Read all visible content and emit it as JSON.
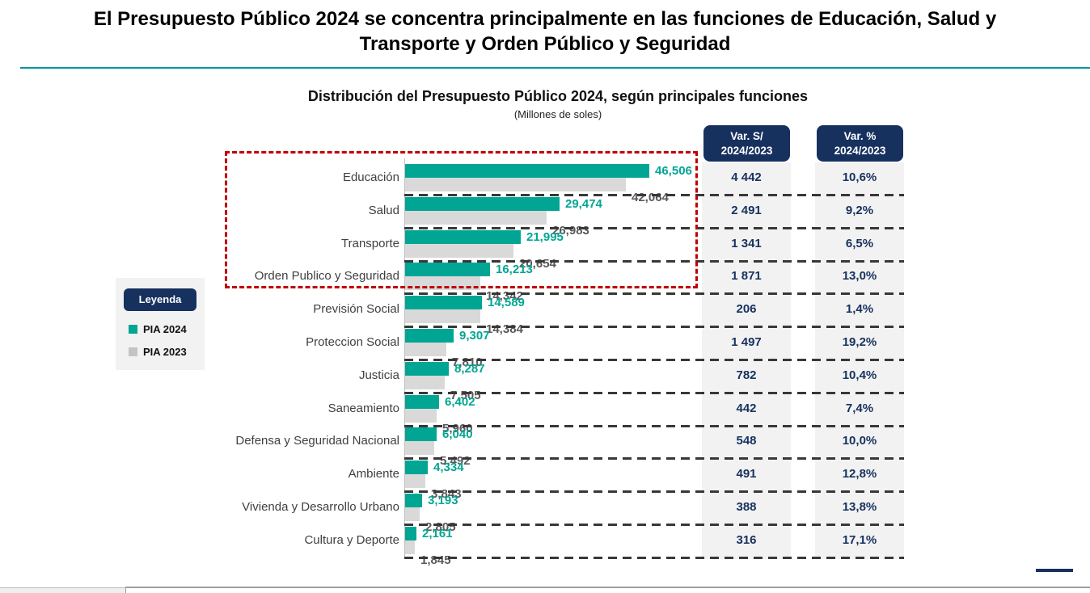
{
  "page": {
    "main_title_line1": "El Presupuesto Público 2024 se concentra principalmente en las funciones de Educación, Salud y",
    "main_title_line2": "Transporte y Orden Público y Seguridad"
  },
  "chart": {
    "title": "Distribución del Presupuesto Público 2024, según principales funciones",
    "subtitle": "(Millones de soles)",
    "var_columns": [
      {
        "line1": "Var. S/",
        "line2": "2024/2023"
      },
      {
        "line1": "Var. %",
        "line2": "2024/2023"
      }
    ],
    "legend": {
      "title": "Leyenda",
      "items": [
        {
          "label": "PIA 2024",
          "color": "#00A693"
        },
        {
          "label": "PIA 2023",
          "color": "#C4C4C4"
        }
      ]
    },
    "colors": {
      "pia_2024": "#00A693",
      "pia_2023": "#D9D9D9",
      "navy": "#17315F",
      "highlight_red": "#C00000",
      "title_divider_teal": "#0096A2",
      "column_background": "#F2F2F2"
    }
  },
  "chart_data": {
    "type": "bar",
    "orientation": "horizontal",
    "title": "Distribución del Presupuesto Público 2024, según principales funciones",
    "subtitle": "(Millones de soles)",
    "unit": "Millones de soles",
    "series_names": [
      "PIA 2024",
      "PIA 2023"
    ],
    "x_range": [
      0,
      46506
    ],
    "legend_position": "left",
    "grid": "dashed-row-separators",
    "highlight": "rows 1-4 framed with red dashed box",
    "rows": [
      {
        "category": "Educación",
        "pia_2024": 46506,
        "pia_2024_label": "46,506",
        "pia_2023": 42064,
        "pia_2023_label": "42,064",
        "var_soles": "4 442",
        "var_pct": "10,6%",
        "highlighted": true
      },
      {
        "category": "Salud",
        "pia_2024": 29474,
        "pia_2024_label": "29,474",
        "pia_2023": 26983,
        "pia_2023_label": "26,983",
        "var_soles": "2 491",
        "var_pct": "9,2%",
        "highlighted": true
      },
      {
        "category": "Transporte",
        "pia_2024": 21995,
        "pia_2024_label": "21,995",
        "pia_2023": 20654,
        "pia_2023_label": "20,654",
        "var_soles": "1 341",
        "var_pct": "6,5%",
        "highlighted": true
      },
      {
        "category": "Orden Publico y Seguridad",
        "pia_2024": 16213,
        "pia_2024_label": "16,213",
        "pia_2023": 14342,
        "pia_2023_label": "14,342",
        "var_soles": "1 871",
        "var_pct": "13,0%",
        "highlighted": true
      },
      {
        "category": "Previsión Social",
        "pia_2024": 14589,
        "pia_2024_label": "14,589",
        "pia_2023": 14384,
        "pia_2023_label": "14,384",
        "var_soles": "206",
        "var_pct": "1,4%",
        "highlighted": false
      },
      {
        "category": "Proteccion Social",
        "pia_2024": 9307,
        "pia_2024_label": "9,307",
        "pia_2023": 7810,
        "pia_2023_label": "7,810",
        "var_soles": "1 497",
        "var_pct": "19,2%",
        "highlighted": false
      },
      {
        "category": "Justicia",
        "pia_2024": 8287,
        "pia_2024_label": "8,287",
        "pia_2023": 7505,
        "pia_2023_label": "7,505",
        "var_soles": "782",
        "var_pct": "10,4%",
        "highlighted": false
      },
      {
        "category": "Saneamiento",
        "pia_2024": 6402,
        "pia_2024_label": "6,402",
        "pia_2023": 5960,
        "pia_2023_label": "5,960",
        "var_soles": "442",
        "var_pct": "7,4%",
        "highlighted": false
      },
      {
        "category": "Defensa y Seguridad Nacional",
        "pia_2024": 6040,
        "pia_2024_label": "6,040",
        "pia_2023": 5492,
        "pia_2023_label": "5,492",
        "var_soles": "548",
        "var_pct": "10,0%",
        "highlighted": false
      },
      {
        "category": "Ambiente",
        "pia_2024": 4334,
        "pia_2024_label": "4,334",
        "pia_2023": 3843,
        "pia_2023_label": "3,843",
        "var_soles": "491",
        "var_pct": "12,8%",
        "highlighted": false
      },
      {
        "category": "Vivienda y Desarrollo Urbano",
        "pia_2024": 3193,
        "pia_2024_label": "3,193",
        "pia_2023": 2805,
        "pia_2023_label": "2,805",
        "var_soles": "388",
        "var_pct": "13,8%",
        "highlighted": false
      },
      {
        "category": "Cultura y Deporte",
        "pia_2024": 2161,
        "pia_2024_label": "2,161",
        "pia_2023": 1845,
        "pia_2023_label": "1,845",
        "var_soles": "316",
        "var_pct": "17,1%",
        "highlighted": false
      }
    ]
  }
}
